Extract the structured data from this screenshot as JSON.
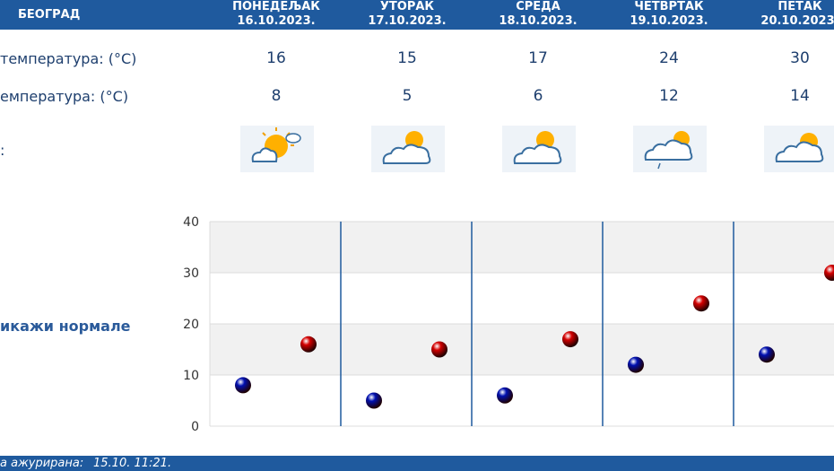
{
  "header": {
    "city": "БЕОГРАД",
    "days": [
      {
        "name": "ПОНЕДЕЉАК",
        "date": "16.10.2023."
      },
      {
        "name": "УТОРАК",
        "date": "17.10.2023."
      },
      {
        "name": "СРЕДА",
        "date": "18.10.2023."
      },
      {
        "name": "ЧЕТВРТАК",
        "date": "19.10.2023."
      },
      {
        "name": "ПЕТАК",
        "date": "20.10.2023."
      }
    ]
  },
  "rows": {
    "max_label": "температура: (°C)",
    "min_label": "емпература: (°C)",
    "icon_label": ":",
    "max": [
      16,
      15,
      17,
      24,
      30
    ],
    "min": [
      8,
      5,
      6,
      12,
      14
    ],
    "icons": [
      "sun-cloud-icon",
      "partly-cloudy-icon",
      "partly-cloudy-icon",
      "cloud-rain-icon",
      "partly-cloudy-icon"
    ]
  },
  "normals_link": "икажи нормале",
  "footer": {
    "label": "а ажурирана:",
    "time": "15.10. 11:21."
  },
  "colors": {
    "header_bg": "#1f5a9e",
    "max_marker": "#d40000",
    "min_marker": "#0010b0",
    "separator": "#1f5a9e"
  },
  "chart_data": {
    "type": "scatter",
    "categories": [
      "ПОНЕДЕЉАК",
      "УТОРАК",
      "СРЕДА",
      "ЧЕТВРТАК",
      "ПЕТАК"
    ],
    "series": [
      {
        "values": [
          8,
          5,
          6,
          12,
          14
        ],
        "color": "#0010b0"
      },
      {
        "values": [
          16,
          15,
          17,
          24,
          30
        ],
        "color": "#d40000"
      }
    ],
    "yticks": [
      0,
      10,
      20,
      30,
      40
    ],
    "ylim": [
      0,
      40
    ],
    "grid": true
  }
}
